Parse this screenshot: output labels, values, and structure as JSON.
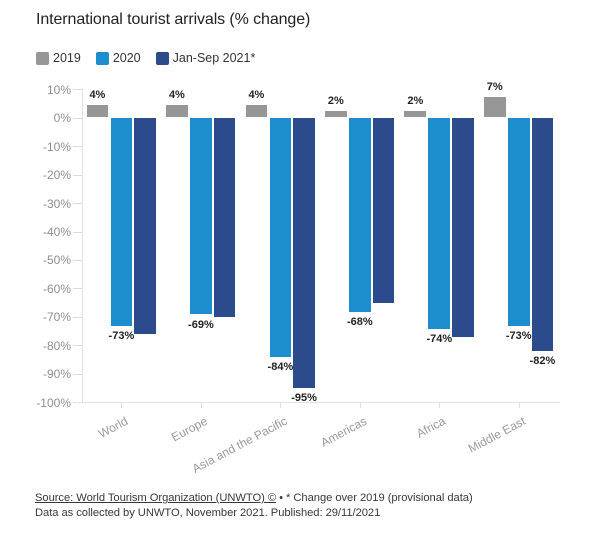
{
  "header": {
    "title": "International tourist arrivals (% change)"
  },
  "legend": {
    "items": [
      {
        "label": "2019",
        "color": "#969696"
      },
      {
        "label": "2020",
        "color": "#1d8ecd"
      },
      {
        "label": "Jan-Sep 2021*",
        "color": "#2c4b8c"
      }
    ]
  },
  "chart_data": {
    "type": "bar",
    "title": "International tourist arrivals (% change)",
    "categories": [
      "World",
      "Europe",
      "Asia and the Pacific",
      "Americas",
      "Africa",
      "Middle East"
    ],
    "series": [
      {
        "name": "2019",
        "color": "#969696",
        "values": [
          4,
          4,
          4,
          2,
          2,
          7
        ],
        "labels": [
          "4%",
          "4%",
          "4%",
          "2%",
          "2%",
          "7%"
        ]
      },
      {
        "name": "2020",
        "color": "#1d8ecd",
        "values": [
          -73,
          -69,
          -84,
          -68,
          -74,
          -73
        ],
        "labels": [
          "-73%",
          "-69%",
          "-84%",
          "-68%",
          "-74%",
          "-73%"
        ]
      },
      {
        "name": "Jan-Sep 2021*",
        "color": "#2c4b8c",
        "values": [
          -76,
          -70,
          -95,
          -65,
          -77,
          -82
        ],
        "labels": [
          null,
          null,
          "-95%",
          null,
          null,
          "-82%"
        ]
      }
    ],
    "ylabel": "",
    "xlabel": "",
    "ylim": [
      -100,
      10
    ],
    "ytick_step": 10,
    "ytick_labels": [
      "10%",
      "0%",
      "-10%",
      "-20%",
      "-30%",
      "-40%",
      "-50%",
      "-60%",
      "-70%",
      "-80%",
      "-90%",
      "-100%"
    ],
    "grid": "left ticks and bottom baseline only",
    "legend_position": "top"
  },
  "footer": {
    "source_link": "Source: World Tourism Organization (UNWTO) ©",
    "separator": " • ",
    "note": "* Change over 2019 (provisional data)",
    "line2": "Data as collected by UNWTO, November 2021. Published: 29/11/2021"
  }
}
